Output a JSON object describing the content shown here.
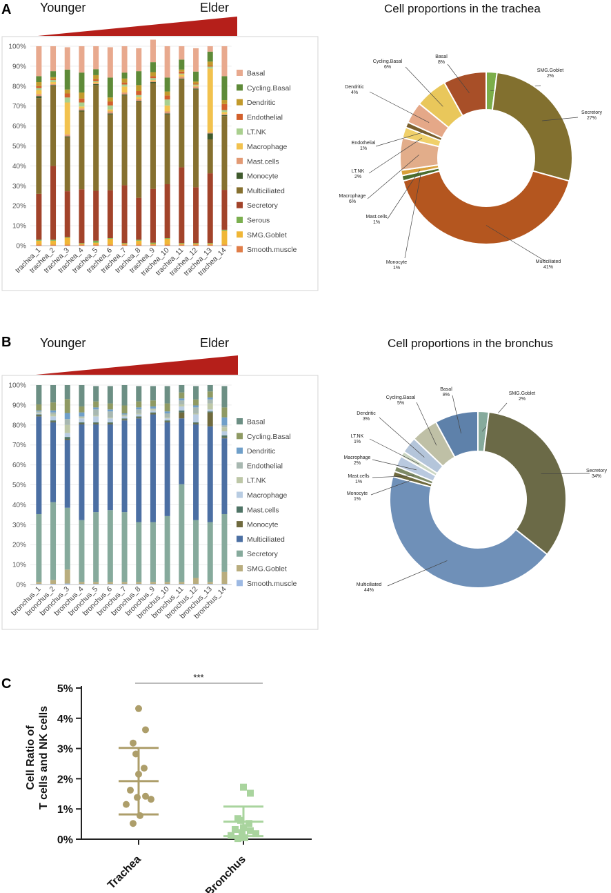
{
  "colors": {
    "trachea": {
      "Basal": "#E8A98E",
      "Cycling.Basal": "#5E8A38",
      "Dendritic": "#C29A2C",
      "Endothelial": "#D2602C",
      "LT.NK": "#A9CF8E",
      "Macrophage": "#F2C24E",
      "Mast.cells": "#E29A74",
      "Monocyte": "#3F5A2D",
      "Multiciliated": "#86702F",
      "Secretory": "#A2432A",
      "Serous": "#7BAF4F",
      "SMG.Goblet": "#F0B636",
      "Smooth.muscle": "#E07D48"
    },
    "bronchus": {
      "Basal": "#6C8F84",
      "Cycling.Basal": "#8F9A63",
      "Dendritic": "#6F9FC9",
      "Endothelial": "#A8B8B1",
      "LT.NK": "#BDC7A7",
      "Macrophage": "#B8CCE2",
      "Mast.cells": "#4F7466",
      "Monocyte": "#6F6A3E",
      "Multiciliated": "#4B6FA3",
      "Secretory": "#86AA9C",
      "SMG.Goblet": "#B9AD7E",
      "Smooth.muscle": "#9DB9E3"
    },
    "pieA": {
      "SMG.Goblet": "#7CAE4A",
      "Secretory": "#82702F",
      "Multiciliated": "#B4561F",
      "Monocyte": "#4C6E2E",
      "Mast.cells": "#D8A03A",
      "Macrophage": "#E2AD8A",
      "LT.NK": "#F0D06A",
      "Endothelial": "#7A5F2D",
      "Dendritic": "#E5A888",
      "Cycling.Basal": "#E9C75B",
      "Basal": "#A84F28"
    },
    "pieB": {
      "SMG.Goblet": "#86AA9C",
      "Secretory": "#6B6A47",
      "Multiciliated": "#6F90B8",
      "Monocyte": "#6F6A3E",
      "Mast.cells": "#7E8A66",
      "Macrophage": "#B9C9DF",
      "LT.NK": "#CBD6C2",
      "Dendritic": "#B4C5DA",
      "Cycling.Basal": "#BFC0A6",
      "Basal": "#5E81AA"
    },
    "dotTrachea": "#AD9E6A",
    "dotBronchus": "#A9D49E"
  },
  "panels": {
    "A": {
      "label": "A",
      "younger": "Younger",
      "elder": "Elder",
      "pie_title": "Cell proportions in the trachea"
    },
    "B": {
      "label": "B",
      "younger": "Younger",
      "elder": "Elder",
      "pie_title": "Cell proportions in the bronchus"
    },
    "C": {
      "label": "C"
    }
  },
  "chart_data": [
    {
      "id": "trachea_bar",
      "type": "bar",
      "stacked": true,
      "ylabel": "",
      "ylim": [
        0,
        100
      ],
      "yticks": [
        "0%",
        "10%",
        "20%",
        "30%",
        "40%",
        "50%",
        "60%",
        "70%",
        "80%",
        "90%",
        "100%"
      ],
      "categories": [
        "trachea_1",
        "trachea_2",
        "trachea_3",
        "trachea_4",
        "trachea_5",
        "trachea_6",
        "trachea_7",
        "trachea_8",
        "trachea_9",
        "trachea_10",
        "trachea_11",
        "trachea_12",
        "trachea_13",
        "trachea_14"
      ],
      "legend_order": [
        "Basal",
        "Cycling.Basal",
        "Dendritic",
        "Endothelial",
        "LT.NK",
        "Macrophage",
        "Mast.cells",
        "Monocyte",
        "Multiciliated",
        "Secretory",
        "Serous",
        "SMG.Goblet",
        "Smooth.muscle"
      ],
      "series": [
        {
          "name": "Smooth.muscle",
          "values": [
            0.5,
            0.5,
            0.5,
            0.5,
            0.5,
            0.5,
            0.5,
            0.5,
            0.5,
            0.5,
            0.5,
            0.5,
            0.5,
            0.5
          ]
        },
        {
          "name": "SMG.Goblet",
          "values": [
            2,
            2,
            3.5,
            0.5,
            1,
            3,
            0.5,
            2,
            0.5,
            3,
            0.5,
            0.5,
            0.5,
            7
          ]
        },
        {
          "name": "Serous",
          "values": [
            0.5,
            0.5,
            0.3,
            0.3,
            1,
            0.3,
            0.3,
            0.5,
            0.5,
            0.3,
            0.3,
            0.3,
            0.3,
            0.5
          ]
        },
        {
          "name": "Secretory",
          "values": [
            23,
            37,
            23,
            27,
            25,
            24,
            29,
            21,
            27,
            27,
            38,
            28,
            35,
            20
          ]
        },
        {
          "name": "Multiciliated",
          "values": [
            48,
            40,
            27,
            39,
            53,
            38,
            45,
            48,
            53,
            35,
            44,
            49,
            17,
            37
          ]
        },
        {
          "name": "Monocyte",
          "values": [
            1,
            0.5,
            0.5,
            0.5,
            0.5,
            0.5,
            0.5,
            0.5,
            0.5,
            0.5,
            0.5,
            0.5,
            3,
            0.5
          ]
        },
        {
          "name": "Mast.cells",
          "values": [
            1,
            0.5,
            1,
            1,
            0.5,
            1,
            1,
            1,
            0.5,
            1,
            1,
            1,
            0.5,
            0.5
          ]
        },
        {
          "name": "Macrophage",
          "values": [
            2,
            1,
            16,
            1,
            0.5,
            1,
            3,
            1,
            0.5,
            3,
            1,
            0.5,
            32,
            1
          ]
        },
        {
          "name": "LT.NK",
          "values": [
            1,
            1,
            2.5,
            2,
            0.5,
            2,
            1,
            1,
            1,
            3,
            0.5,
            0.5,
            1,
            1
          ]
        },
        {
          "name": "Endothelial",
          "values": [
            1,
            0.5,
            2,
            2,
            1,
            2,
            1,
            2,
            1,
            2,
            1,
            0.5,
            0.5,
            3
          ]
        },
        {
          "name": "Dendritic",
          "values": [
            2,
            1,
            2,
            3,
            2,
            2,
            2,
            3,
            2,
            2,
            1,
            1,
            2,
            2
          ]
        },
        {
          "name": "Cycling.Basal",
          "values": [
            3,
            3,
            10,
            10,
            3,
            10,
            3,
            7,
            5,
            7,
            5,
            5,
            5,
            12
          ]
        },
        {
          "name": "Basal",
          "values": [
            15,
            12.5,
            11.2,
            13.2,
            11.5,
            15.2,
            13.2,
            11.5,
            11.3,
            15.7,
            6.7,
            11.7,
            2.7,
            15
          ]
        }
      ]
    },
    {
      "id": "trachea_pie",
      "type": "pie",
      "donut": true,
      "title": "Cell proportions in the trachea",
      "slices": [
        {
          "name": "SMG.Goblet",
          "pct_label": "2%",
          "value": 2
        },
        {
          "name": "Secretory",
          "pct_label": "27%",
          "value": 27
        },
        {
          "name": "Multiciliated",
          "pct_label": "41%",
          "value": 41
        },
        {
          "name": "Monocyte",
          "pct_label": "1%",
          "value": 1
        },
        {
          "name": "Mast.cells",
          "pct_label": "1%",
          "value": 1
        },
        {
          "name": "Macrophage",
          "pct_label": "6%",
          "value": 6
        },
        {
          "name": "LT.NK",
          "pct_label": "2%",
          "value": 2
        },
        {
          "name": "Endothelial",
          "pct_label": "1%",
          "value": 1
        },
        {
          "name": "Dendritic",
          "pct_label": "4%",
          "value": 4
        },
        {
          "name": "Cycling.Basal",
          "pct_label": "6%",
          "value": 6
        },
        {
          "name": "Basal",
          "pct_label": "8%",
          "value": 8
        }
      ]
    },
    {
      "id": "bronchus_bar",
      "type": "bar",
      "stacked": true,
      "ylim": [
        0,
        100
      ],
      "yticks": [
        "0%",
        "10%",
        "20%",
        "30%",
        "40%",
        "50%",
        "60%",
        "70%",
        "80%",
        "90%",
        "100%"
      ],
      "categories": [
        "bronchus_1",
        "bronchus_2",
        "bronchus_3",
        "bronchus_4",
        "bronchus_5",
        "bronchus_6",
        "bronchus_7",
        "bronchus_8",
        "bronchus_9",
        "bronchus_10",
        "bronchus_11",
        "bronchus_12",
        "bronchus_13",
        "bronchus_14"
      ],
      "legend_order": [
        "Basal",
        "Cycling.Basal",
        "Dendritic",
        "Endothelial",
        "LT.NK",
        "Macrophage",
        "Mast.cells",
        "Monocyte",
        "Multiciliated",
        "Secretory",
        "SMG.Goblet",
        "Smooth.muscle"
      ],
      "series": [
        {
          "name": "Smooth.muscle",
          "values": [
            0.3,
            0.3,
            0.5,
            0.3,
            0.3,
            0.3,
            0.3,
            0.3,
            0.3,
            0.3,
            0.3,
            0.3,
            0.3,
            0.3
          ]
        },
        {
          "name": "SMG.Goblet",
          "values": [
            1,
            2,
            7,
            1,
            1,
            1,
            1,
            1,
            1,
            1,
            1,
            3,
            1,
            6
          ]
        },
        {
          "name": "Secretory",
          "values": [
            34,
            39,
            31,
            31,
            35,
            36,
            35,
            30,
            30,
            33,
            49,
            29,
            30,
            29
          ]
        },
        {
          "name": "Multiciliated",
          "values": [
            49,
            40,
            34,
            48,
            44,
            43,
            46,
            52,
            54,
            47,
            33,
            48,
            48,
            38
          ]
        },
        {
          "name": "Monocyte",
          "values": [
            0.5,
            0.5,
            0.5,
            0.5,
            0.5,
            0.5,
            0.5,
            0.5,
            0.5,
            0.5,
            3,
            0.5,
            7,
            0.5
          ]
        },
        {
          "name": "Mast.cells",
          "values": [
            0.5,
            0.5,
            1,
            0.5,
            0.5,
            0.5,
            0.5,
            0.5,
            0.5,
            0.5,
            1,
            0.5,
            0.5,
            1
          ]
        },
        {
          "name": "Macrophage",
          "values": [
            0.5,
            2,
            2,
            2,
            3,
            2,
            1,
            1,
            1,
            1,
            2,
            4,
            1,
            2
          ]
        },
        {
          "name": "LT.NK",
          "values": [
            0.5,
            1,
            4,
            0.5,
            0.5,
            0.5,
            0.5,
            0.5,
            0.5,
            0.5,
            1,
            0.5,
            3,
            2
          ]
        },
        {
          "name": "Endothelial",
          "values": [
            0.5,
            1,
            3,
            0.5,
            3,
            3,
            0.5,
            2,
            0.5,
            2,
            2,
            3,
            2,
            1
          ]
        },
        {
          "name": "Dendritic",
          "values": [
            0.5,
            1,
            3,
            2,
            1,
            1,
            0.5,
            1,
            1,
            1,
            1,
            1,
            1,
            4
          ]
        },
        {
          "name": "Cycling.Basal",
          "values": [
            3,
            4,
            7,
            3,
            3,
            3,
            4,
            3,
            3,
            4,
            3,
            3,
            3,
            5
          ]
        },
        {
          "name": "Basal",
          "values": [
            9.7,
            8.7,
            7,
            10.7,
            7.7,
            8.7,
            10.2,
            7.7,
            7.2,
            8.7,
            3.7,
            6.7,
            3.2,
            10.7
          ]
        }
      ]
    },
    {
      "id": "bronchus_pie",
      "type": "pie",
      "donut": true,
      "title": "Cell proportions in the bronchus",
      "slices": [
        {
          "name": "SMG.Goblet",
          "pct_label": "2%",
          "value": 2
        },
        {
          "name": "Secretory",
          "pct_label": "34%",
          "value": 34
        },
        {
          "name": "Multiciliated",
          "pct_label": "44%",
          "value": 44
        },
        {
          "name": "Monocyte",
          "pct_label": "1%",
          "value": 1
        },
        {
          "name": "Mast.cells",
          "pct_label": "1%",
          "value": 1
        },
        {
          "name": "Macrophage",
          "pct_label": "2%",
          "value": 2
        },
        {
          "name": "LT.NK",
          "pct_label": "1%",
          "value": 1
        },
        {
          "name": "Dendritic",
          "pct_label": "3%",
          "value": 3
        },
        {
          "name": "Cycling.Basal",
          "pct_label": "5%",
          "value": 5
        },
        {
          "name": "Basal",
          "pct_label": "8%",
          "value": 8
        }
      ]
    },
    {
      "id": "ratio_scatter",
      "type": "scatter",
      "ylabel_line1": "Cell Ratio of",
      "ylabel_line2": "T cells and NK cells",
      "ylim": [
        0,
        5
      ],
      "yticks": [
        "0%",
        "1%",
        "2%",
        "3%",
        "4%",
        "5%"
      ],
      "categories": [
        "Trachea",
        "Bronchus"
      ],
      "significance": "***",
      "groups": [
        {
          "name": "Trachea",
          "mean": 1.92,
          "sd_low": 0.82,
          "sd_high": 3.02,
          "points": [
            4.32,
            3.62,
            3.18,
            2.82,
            2.35,
            2.15,
            1.62,
            1.42,
            1.38,
            1.32,
            1.15,
            0.78,
            0.52
          ]
        },
        {
          "name": "Bronchus",
          "mean": 0.58,
          "sd_low": 0.1,
          "sd_high": 1.08,
          "points": [
            1.72,
            1.52,
            0.68,
            0.62,
            0.52,
            0.38,
            0.32,
            0.28,
            0.22,
            0.18,
            0.12,
            0.05,
            0.02
          ]
        }
      ]
    }
  ]
}
